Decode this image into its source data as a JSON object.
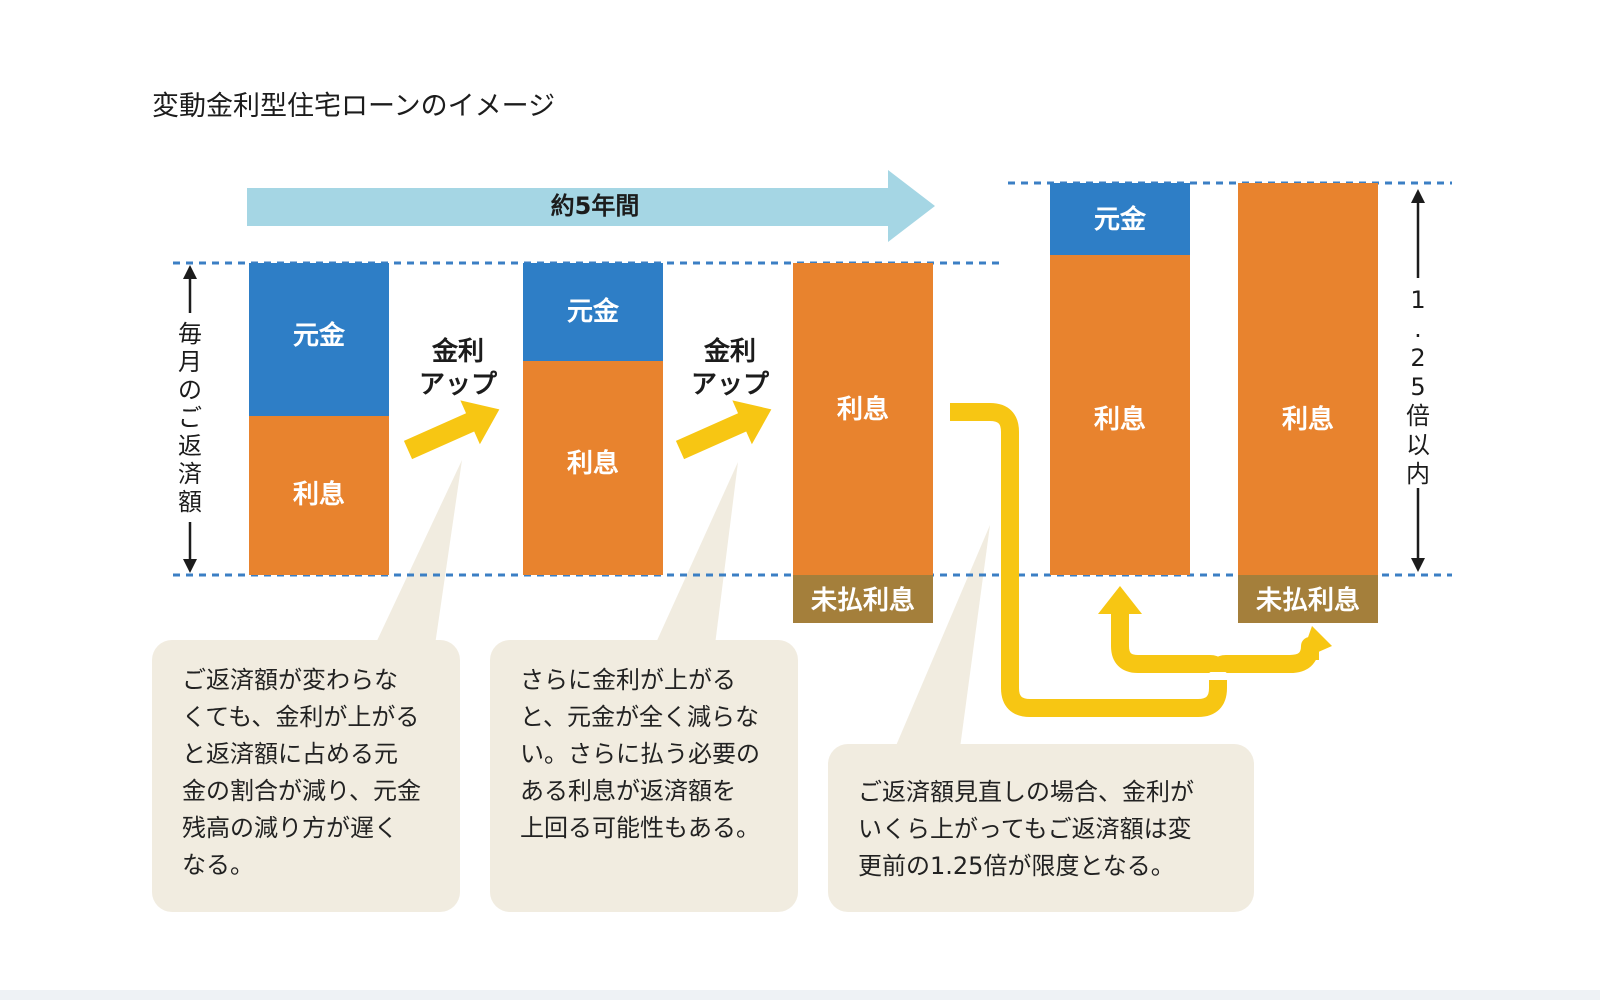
{
  "title": "変動金利型住宅ローンのイメージ",
  "timeline_label": "約5年間",
  "axis_left_label": "毎月のご返済額",
  "axis_right_label": "1.25倍以内",
  "rate_up_labels": [
    {
      "line1": "金利",
      "line2": "アップ"
    },
    {
      "line1": "金利",
      "line2": "アップ"
    }
  ],
  "bars": [
    {
      "segments": [
        {
          "label": "元金",
          "color": "#2e7ec6"
        },
        {
          "label": "利息",
          "color": "#e8832e"
        }
      ],
      "unpaid_label": ""
    },
    {
      "segments": [
        {
          "label": "元金",
          "color": "#2e7ec6"
        },
        {
          "label": "利息",
          "color": "#e8832e"
        }
      ],
      "unpaid_label": ""
    },
    {
      "segments": [
        {
          "label": "利息",
          "color": "#e8832e"
        }
      ],
      "unpaid_label": "未払利息"
    },
    {
      "segments": [
        {
          "label": "元金",
          "color": "#2e7ec6"
        },
        {
          "label": "利息",
          "color": "#e8832e"
        }
      ],
      "unpaid_label": ""
    },
    {
      "segments": [
        {
          "label": "利息",
          "color": "#e8832e"
        }
      ],
      "unpaid_label": "未払利息"
    }
  ],
  "colors": {
    "principal": "#2e7ec6",
    "interest": "#e8832e",
    "unpaid": "#a47f3b",
    "timeline_arrow": "#a5d6e4",
    "rate_arrow": "#f7c613",
    "dashed_line": "#3b7fc4",
    "callout_bg": "#f1ece0"
  },
  "callouts": [
    {
      "text": "ご返済額が変わらな\nくても、金利が上がる\nと返済額に占める元\n金の割合が減り、元金\n残高の減り方が遅く\nなる。"
    },
    {
      "text": "さらに金利が上がる\nと、元金が全く減らな\nい。さらに払う必要の\nある利息が返済額を\n上回る可能性もある。"
    },
    {
      "text": "ご返済額見直しの場合、金利が\nいくら上がってもご返済額は変\n更前の1.25倍が限度となる。"
    }
  ]
}
